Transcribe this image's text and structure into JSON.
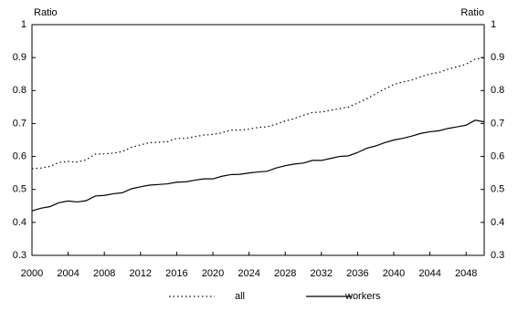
{
  "chart_data": {
    "type": "line",
    "ylabel": "Ratio",
    "y2label": "Ratio",
    "x": [
      2000,
      2001,
      2002,
      2003,
      2004,
      2005,
      2006,
      2007,
      2008,
      2009,
      2010,
      2011,
      2012,
      2013,
      2014,
      2015,
      2016,
      2017,
      2018,
      2019,
      2020,
      2021,
      2022,
      2023,
      2024,
      2025,
      2026,
      2027,
      2028,
      2029,
      2030,
      2031,
      2032,
      2033,
      2034,
      2035,
      2036,
      2037,
      2038,
      2039,
      2040,
      2041,
      2042,
      2043,
      2044,
      2045,
      2046,
      2047,
      2048,
      2049,
      2050
    ],
    "series": [
      {
        "name": "all",
        "color": "#000000",
        "style": "dotted",
        "values": [
          0.563,
          0.565,
          0.57,
          0.582,
          0.585,
          0.583,
          0.59,
          0.607,
          0.608,
          0.61,
          0.615,
          0.628,
          0.635,
          0.642,
          0.643,
          0.645,
          0.655,
          0.655,
          0.66,
          0.665,
          0.667,
          0.672,
          0.68,
          0.68,
          0.683,
          0.688,
          0.69,
          0.698,
          0.708,
          0.715,
          0.725,
          0.733,
          0.735,
          0.74,
          0.745,
          0.75,
          0.762,
          0.775,
          0.79,
          0.805,
          0.818,
          0.826,
          0.832,
          0.842,
          0.85,
          0.855,
          0.865,
          0.872,
          0.88,
          0.895,
          0.9
        ]
      },
      {
        "name": "workers",
        "color": "#000000",
        "style": "solid",
        "values": [
          0.435,
          0.443,
          0.448,
          0.46,
          0.465,
          0.462,
          0.466,
          0.48,
          0.482,
          0.487,
          0.49,
          0.502,
          0.508,
          0.513,
          0.515,
          0.517,
          0.522,
          0.523,
          0.528,
          0.532,
          0.532,
          0.54,
          0.545,
          0.546,
          0.55,
          0.553,
          0.555,
          0.565,
          0.572,
          0.577,
          0.58,
          0.588,
          0.588,
          0.594,
          0.6,
          0.602,
          0.612,
          0.625,
          0.632,
          0.642,
          0.65,
          0.655,
          0.662,
          0.67,
          0.675,
          0.678,
          0.685,
          0.69,
          0.695,
          0.71,
          0.705
        ]
      }
    ],
    "xlim": [
      2000,
      2050
    ],
    "xticks": [
      2000,
      2004,
      2008,
      2012,
      2016,
      2020,
      2024,
      2028,
      2032,
      2036,
      2040,
      2044,
      2048
    ],
    "ylim": [
      0.3,
      1
    ],
    "yticks": [
      0.3,
      0.4,
      0.5,
      0.6,
      0.7,
      0.8,
      0.9,
      1
    ],
    "y2lim": [
      0.3,
      1
    ],
    "y2ticks": [
      0.3,
      0.4,
      0.5,
      0.6,
      0.7,
      0.8,
      0.9,
      1
    ],
    "legend": "bottom"
  }
}
